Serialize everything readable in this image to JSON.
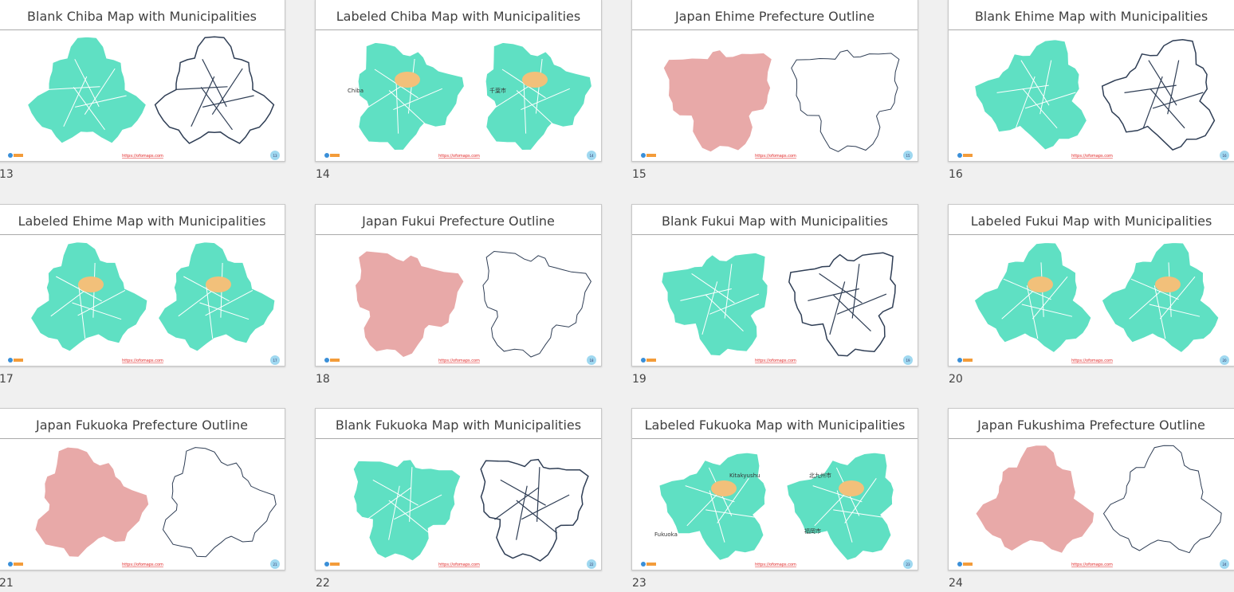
{
  "slides": [
    {
      "number": "13",
      "title": "Blank Chiba Map with Municipalities",
      "url": "https://ofomaps.com"
    },
    {
      "number": "14",
      "title": "Labeled Chiba Map with Municipalities",
      "url": "https://ofomaps.com",
      "labels": [
        "Chiba",
        "千葉市"
      ]
    },
    {
      "number": "15",
      "title": "Japan Ehime Prefecture Outline",
      "url": "https://ofomaps.com"
    },
    {
      "number": "16",
      "title": "Blank Ehime Map with Municipalities",
      "url": "https://ofomaps.com"
    },
    {
      "number": "17",
      "title": "Labeled Ehime Map with Municipalities",
      "url": "https://ofomaps.com"
    },
    {
      "number": "18",
      "title": "Japan Fukui Prefecture Outline",
      "url": "https://ofomaps.com"
    },
    {
      "number": "19",
      "title": "Blank Fukui Map with Municipalities",
      "url": "https://ofomaps.com"
    },
    {
      "number": "20",
      "title": "Labeled Fukui Map with Municipalities",
      "url": "https://ofomaps.com"
    },
    {
      "number": "21",
      "title": "Japan Fukuoka Prefecture Outline",
      "url": "https://ofomaps.com"
    },
    {
      "number": "22",
      "title": "Blank Fukuoka Map with Municipalities",
      "url": "https://ofomaps.com"
    },
    {
      "number": "23",
      "title": "Labeled Fukuoka Map with Municipalities",
      "url": "https://ofomaps.com",
      "labels": [
        "Kitakyushu",
        "北九州市",
        "Fukuoka",
        "福岡市"
      ]
    },
    {
      "number": "24",
      "title": "Japan Fukushima Prefecture Outline",
      "url": "https://ofomaps.com"
    }
  ]
}
